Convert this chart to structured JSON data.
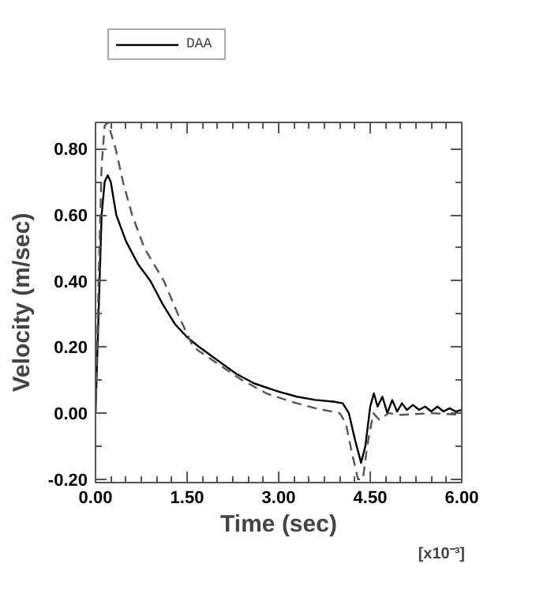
{
  "chart_data": {
    "type": "line",
    "xlabel": "Time (sec)",
    "ylabel": "Velocity (m/sec)",
    "xlim": [
      0,
      6
    ],
    "ylim": [
      -0.21,
      0.88
    ],
    "xticks": [
      {
        "value": 0,
        "label": "0.00"
      },
      {
        "value": 1.5,
        "label": "1.50"
      },
      {
        "value": 3,
        "label": "3.00"
      },
      {
        "value": 4.5,
        "label": "4.50"
      },
      {
        "value": 6,
        "label": "6.00"
      }
    ],
    "yticks": [
      {
        "value": -0.2,
        "label": "-0.20"
      },
      {
        "value": 0,
        "label": "0.00"
      },
      {
        "value": 0.2,
        "label": "0.20"
      },
      {
        "value": 0.4,
        "label": "0.40"
      },
      {
        "value": 0.6,
        "label": "0.60"
      },
      {
        "value": 0.8,
        "label": "0.80"
      }
    ],
    "annotations": [
      "[x10⁻³]"
    ],
    "legend": "top left",
    "grid": false,
    "series": [
      {
        "name": "DAA",
        "color": "#000000",
        "line_style": "solid",
        "x": [
          0,
          0.05,
          0.1,
          0.15,
          0.2,
          0.25,
          0.34,
          0.5,
          0.7,
          0.9,
          1.1,
          1.3,
          1.5,
          1.7,
          2.0,
          2.3,
          2.6,
          3.0,
          3.3,
          3.6,
          3.9,
          4.05,
          4.15,
          4.25,
          4.35,
          4.42,
          4.5,
          4.56,
          4.62,
          4.7,
          4.78,
          4.86,
          4.94,
          5.02,
          5.1,
          5.2,
          5.3,
          5.4,
          5.5,
          5.6,
          5.7,
          5.8,
          5.9,
          6.0
        ],
        "values": [
          0,
          0.3,
          0.6,
          0.7,
          0.72,
          0.7,
          0.6,
          0.52,
          0.45,
          0.4,
          0.33,
          0.27,
          0.23,
          0.2,
          0.16,
          0.12,
          0.09,
          0.065,
          0.05,
          0.04,
          0.035,
          0.03,
          0.0,
          -0.08,
          -0.15,
          -0.1,
          0.02,
          0.06,
          0.02,
          0.05,
          0.0,
          0.04,
          0.005,
          0.03,
          0.01,
          0.025,
          0.01,
          0.02,
          0.005,
          0.02,
          0.005,
          0.015,
          0.005,
          0.01
        ]
      },
      {
        "color": "#555555",
        "line_style": "dashed",
        "x": [
          0,
          0.05,
          0.1,
          0.15,
          0.2,
          0.33,
          0.45,
          0.6,
          0.8,
          1.12,
          1.35,
          1.6,
          2.0,
          2.4,
          2.8,
          3.2,
          3.6,
          4.0,
          4.1,
          4.2,
          4.3,
          4.38,
          4.45,
          4.55,
          4.65,
          4.8,
          5.0,
          5.5,
          6.0
        ],
        "values": [
          0,
          0.4,
          0.75,
          0.87,
          0.88,
          0.8,
          0.7,
          0.6,
          0.5,
          0.4,
          0.3,
          0.2,
          0.15,
          0.1,
          0.06,
          0.035,
          0.015,
          0.0,
          -0.03,
          -0.12,
          -0.2,
          -0.2,
          -0.1,
          0.0,
          -0.02,
          0.0,
          -0.005,
          0.0,
          -0.005
        ]
      }
    ]
  }
}
